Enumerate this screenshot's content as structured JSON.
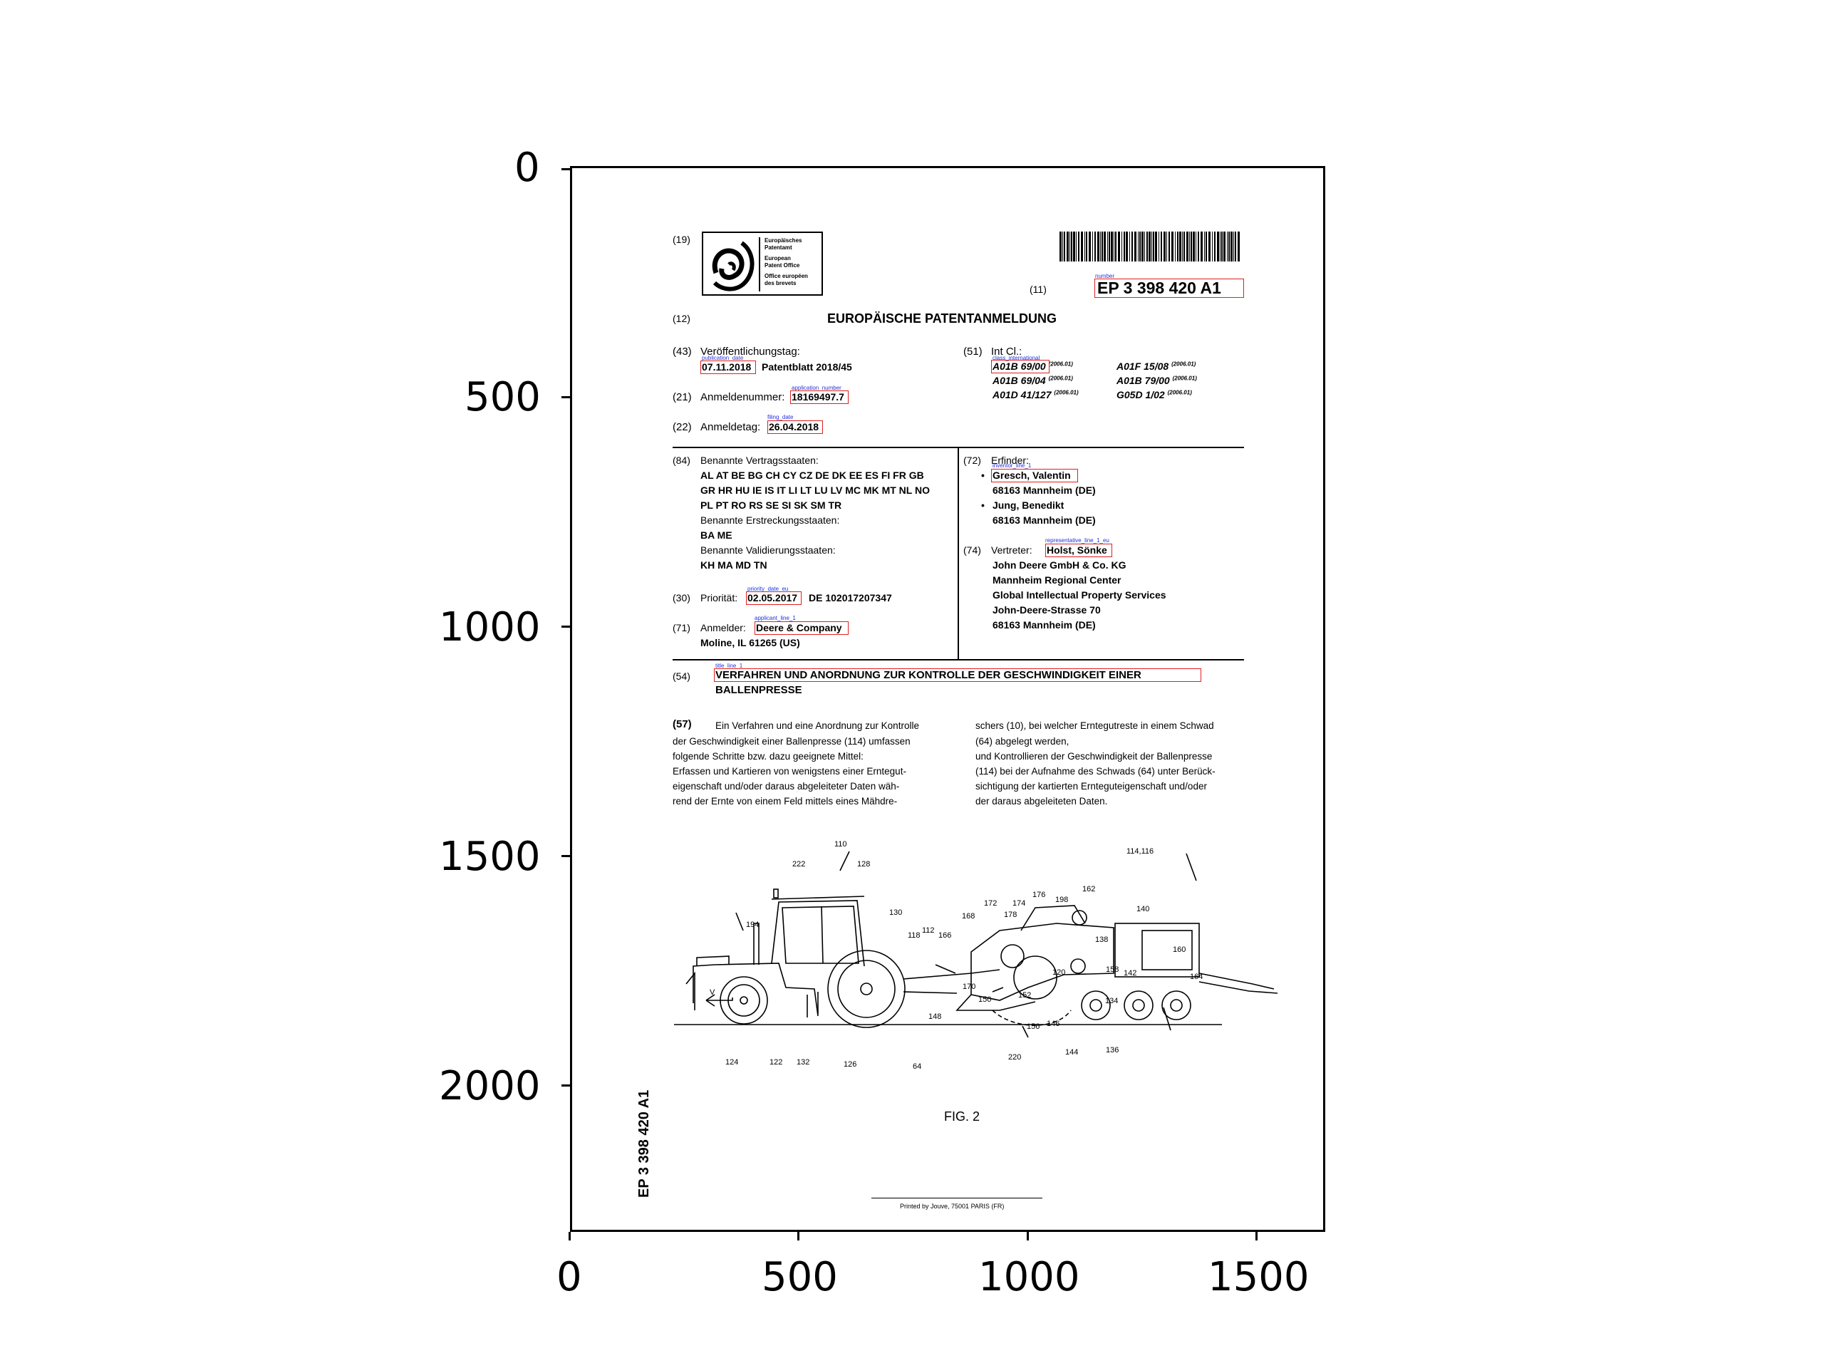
{
  "axes": {
    "x_ticks": [
      "0",
      "500",
      "1000",
      "1500"
    ],
    "y_ticks": [
      "0",
      "500",
      "1000",
      "1500",
      "2000"
    ]
  },
  "header": {
    "code_19": "(19)",
    "epo_logo_lines": [
      "Europäisches",
      "Patentamt",
      "European",
      "Patent Office",
      "Office européen",
      "des brevets"
    ],
    "code_11": "(11)",
    "number_tag": "number",
    "publication_number": "EP 3 398 420 A1",
    "code_12": "(12)",
    "doc_type": "EUROPÄISCHE PATENTANMELDUNG"
  },
  "bibliographic": {
    "code_43": "(43)",
    "pub_label": "Veröffentlichungstag:",
    "pub_tag": "publication_date",
    "pub_date": "07.11.2018",
    "pub_bulletin": "Patentblatt 2018/45",
    "code_21": "(21)",
    "appno_label": "Anmeldenummer:",
    "appno_tag": "application_number",
    "appno": "18169497.7",
    "code_22": "(22)",
    "filing_label": "Anmeldetag:",
    "filing_tag": "filing_date",
    "filing_date": "26.04.2018",
    "code_51": "(51)",
    "intcl_label": "Int Cl.:",
    "class_tag": "class_international",
    "classes": [
      {
        "code": "A01B 69/00",
        "ver": "(2006.01)"
      },
      {
        "code": "A01F 15/08",
        "ver": "(2006.01)"
      },
      {
        "code": "A01B 69/04",
        "ver": "(2006.01)"
      },
      {
        "code": "A01B 79/00",
        "ver": "(2006.01)"
      },
      {
        "code": "A01D 41/127",
        "ver": "(2006.01)"
      },
      {
        "code": "G05D 1/02",
        "ver": "(2006.01)"
      }
    ]
  },
  "left_col": {
    "code_84": "(84)",
    "states_label": "Benannte Vertragsstaaten:",
    "states_lines": [
      "AL AT BE BG CH CY CZ DE DK EE ES FI FR GB",
      "GR HR HU IE IS IT LI LT LU LV MC MK MT NL NO",
      "PL PT RO RS SE SI SK SM TR"
    ],
    "ext_label": "Benannte Erstreckungsstaaten:",
    "ext_states": "BA ME",
    "val_label": "Benannte Validierungsstaaten:",
    "val_states": "KH MA MD TN",
    "code_30": "(30)",
    "prio_label": "Priorität:",
    "prio_tag": "priority_date_eu",
    "prio_date": "02.05.2017",
    "prio_number": "DE 102017207347",
    "code_71": "(71)",
    "applicant_label": "Anmelder:",
    "applicant_tag": "applicant_line_1",
    "applicant": "Deere & Company",
    "applicant_addr": "Moline, IL 61265 (US)"
  },
  "right_col": {
    "code_72": "(72)",
    "inventor_label": "Erfinder:",
    "inventor_tag": "inventor_line_1",
    "inventor1": "Gresch, Valentin",
    "inventor1_addr": "68163 Mannheim (DE)",
    "inventor2": "Jung, Benedikt",
    "inventor2_addr": "68163 Mannheim (DE)",
    "bullet": "•",
    "code_74": "(74)",
    "rep_label": "Vertreter:",
    "rep_tag": "representative_line_1_eu",
    "rep": "Holst, Sönke",
    "rep_lines": [
      "John Deere GmbH & Co. KG",
      "Mannheim Regional Center",
      "Global Intellectual Property Services",
      "John-Deere-Strasse 70",
      "68163 Mannheim (DE)"
    ]
  },
  "title_block": {
    "code_54": "(54)",
    "title_tag": "title_line_1",
    "title_line1": "VERFAHREN UND ANORDNUNG ZUR KONTROLLE DER GESCHWINDIGKEIT EINER",
    "title_line2": "BALLENPRESSE"
  },
  "abstract": {
    "code_57": "(57)",
    "left_lines": [
      "Ein Verfahren und eine Anordnung zur Kontrolle",
      "der Geschwindigkeit einer Ballenpresse (114) umfassen",
      "folgende Schritte bzw. dazu geeignete Mittel:",
      "Erfassen und Kartieren von wenigstens einer Erntegut-",
      "eigenschaft und/oder daraus abgeleiteter Daten wäh-",
      "rend der Ernte von einem Feld mittels eines Mähdre-"
    ],
    "right_lines": [
      "schers (10), bei welcher Erntegutreste in einem Schwad",
      "(64) abgelegt werden,",
      "und Kontrollieren der Geschwindigkeit der Ballenpresse",
      "(114) bei der Aufnahme des Schwads (64) unter Berück-",
      "sichtigung der kartierten Ernteguteigenschaft und/oder",
      "der daraus abgeleiteten Daten."
    ]
  },
  "figure": {
    "direction_label": "V",
    "caption": "FIG. 2",
    "refs": [
      "110",
      "222",
      "128",
      "114,116",
      "194",
      "130",
      "118",
      "112",
      "166",
      "168",
      "172",
      "174",
      "176",
      "178",
      "198",
      "162",
      "140",
      "138",
      "160",
      "120",
      "158",
      "142",
      "164",
      "170",
      "150",
      "152",
      "148",
      "156",
      "146",
      "134",
      "124",
      "122",
      "132",
      "126",
      "64",
      "220",
      "144",
      "136"
    ]
  },
  "side_number": "EP 3 398 420 A1",
  "footer": {
    "printer": "Printed by Jouve, 75001 PARIS (FR)"
  }
}
